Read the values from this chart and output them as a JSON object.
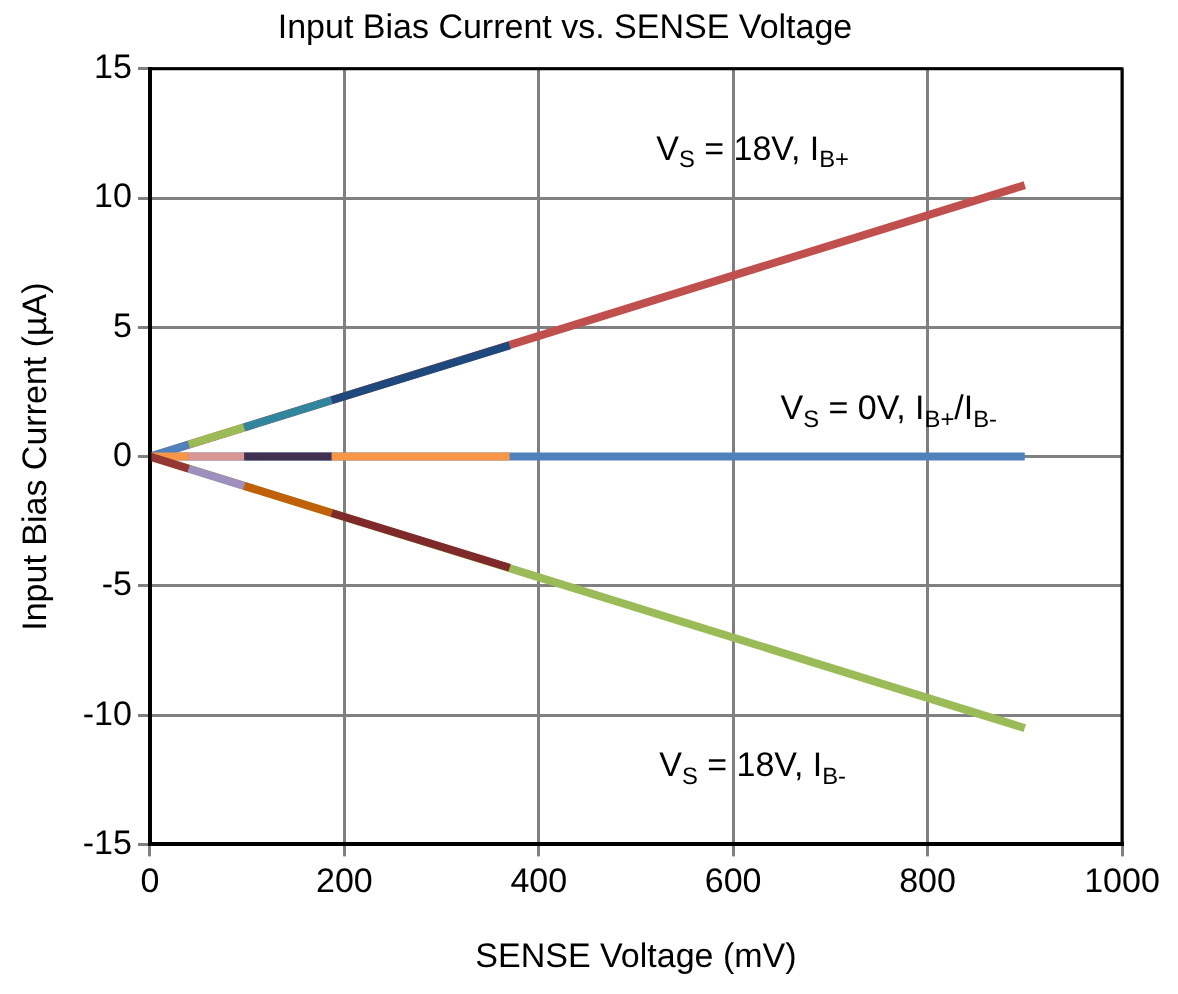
{
  "chart_data": {
    "type": "line",
    "title": "Input Bias Current vs. SENSE Voltage",
    "xlabel": "SENSE Voltage (mV)",
    "ylabel": "Input Bias Current (µA)",
    "xlim": [
      0,
      1000
    ],
    "xticks": [
      0,
      200,
      400,
      600,
      800,
      1000
    ],
    "ylim": [
      -15,
      15
    ],
    "yticks": [
      -15,
      -10,
      -5,
      0,
      5,
      10,
      15
    ],
    "grid": true,
    "legend": false,
    "marker": "none",
    "line_style": "solid",
    "series": [
      {
        "color": "#c0504d",
        "x": [
          0,
          900
        ],
        "values": [
          0,
          10.5
        ]
      },
      {
        "color": "#4f81bd",
        "x": [
          0,
          900
        ],
        "values": [
          0,
          0
        ]
      },
      {
        "color": "#9bbb59",
        "x": [
          0,
          900
        ],
        "values": [
          0,
          -10.5
        ]
      },
      {
        "color": "#4f81bd",
        "x": [
          0,
          40
        ],
        "values": [
          0,
          0.47
        ]
      },
      {
        "color": "#9bbb59",
        "x": [
          40,
          97
        ],
        "values": [
          0.47,
          1.13
        ]
      },
      {
        "color": "#31859c",
        "x": [
          97,
          187
        ],
        "values": [
          1.13,
          2.18
        ]
      },
      {
        "color": "#1f497d",
        "x": [
          187,
          370
        ],
        "values": [
          2.18,
          4.3
        ]
      },
      {
        "color": "#f79646",
        "x": [
          0,
          40
        ],
        "values": [
          0,
          0
        ]
      },
      {
        "color": "#d99694",
        "x": [
          40,
          97
        ],
        "values": [
          0,
          0
        ]
      },
      {
        "color": "#403151",
        "x": [
          97,
          187
        ],
        "values": [
          0,
          0
        ]
      },
      {
        "color": "#f79646",
        "x": [
          187,
          370
        ],
        "values": [
          0,
          0
        ]
      },
      {
        "color": "#953735",
        "x": [
          0,
          40
        ],
        "values": [
          0,
          -0.47
        ]
      },
      {
        "color": "#9f8fbf",
        "x": [
          40,
          97
        ],
        "values": [
          -0.47,
          -1.13
        ]
      },
      {
        "color": "#c0600a",
        "x": [
          97,
          187
        ],
        "values": [
          -1.13,
          -2.18
        ]
      },
      {
        "color": "#7f2a2a",
        "x": [
          187,
          370
        ],
        "values": [
          -2.18,
          -4.3
        ]
      }
    ],
    "annotations": [
      "V$_{S}$ = 18V, I$_{B+}$",
      "V$_{S}$ = 0V, I$_{B+}$/I$_{B-}$",
      "V$_{S}$ = 18V, I$_{B-}$"
    ]
  }
}
